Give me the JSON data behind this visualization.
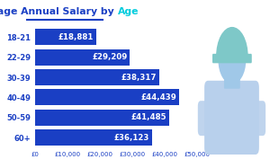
{
  "title_part1": "Average Annual Salary by ",
  "title_part2": "Age",
  "title_color1": "#1a3fc4",
  "title_color2": "#00ccdd",
  "categories": [
    "18-21",
    "22-29",
    "30-39",
    "40-49",
    "50-59",
    "60+"
  ],
  "values": [
    18881,
    29209,
    38317,
    44439,
    41485,
    36123
  ],
  "labels": [
    "£18,881",
    "£29,209",
    "£38,317",
    "£44,439",
    "£41,485",
    "£36,123"
  ],
  "bar_color": "#1a3fc4",
  "text_color": "#ffffff",
  "label_color": "#1a3fc4",
  "tick_color": "#1a3fc4",
  "background_color": "#e8f0fc",
  "fig_background": "#ffffff",
  "xlim": [
    0,
    50000
  ],
  "xticks": [
    0,
    10000,
    20000,
    30000,
    40000,
    50000
  ],
  "xtick_labels": [
    "£0",
    "£10,000",
    "£20,000",
    "£30,000",
    "£40,000",
    "£50,000"
  ],
  "title_underline_color": "#1a3fc4",
  "worker_bg_color": "#c8d8f0",
  "worker_head_color": "#a0c8e8",
  "worker_body_color": "#b8d0ec",
  "worker_helmet_color": "#7ec8c8"
}
